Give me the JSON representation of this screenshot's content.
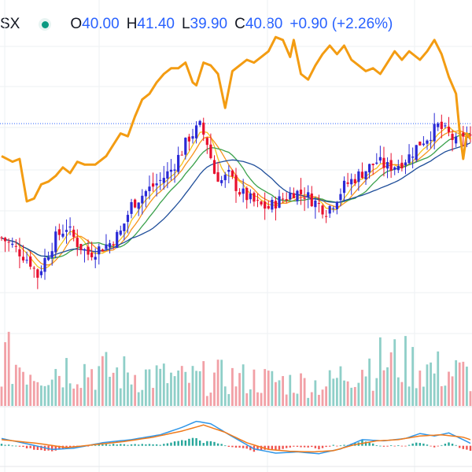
{
  "legend": {
    "symbol": "SX",
    "status_color": "#089981",
    "open_label": "O",
    "open": "40.00",
    "high_label": "H",
    "high": "41.40",
    "low_label": "L",
    "low": "39.90",
    "close_label": "C",
    "close": "40.80",
    "change": "+0.90 (+2.26%)"
  },
  "chart_data": {
    "type": "candlestick",
    "colors": {
      "up": "#2a2ad6",
      "down": "#e8102e",
      "volume_up": "#8fcfc8",
      "volume_down": "#f2a0a6",
      "overlay": "#f39c12",
      "ma_fast": "#f5c21b",
      "ma_mid": "#f7941d",
      "ma_slow": "#3aa14b",
      "ma_long": "#1f4e9a",
      "macd": "#2f96e8",
      "signal": "#f07a1a",
      "hist_up": "#26a69a",
      "hist_down": "#ef5350"
    },
    "price_line": 41.4,
    "keypoints": {
      "price": [
        [
          0,
          37.2
        ],
        [
          4,
          36.8
        ],
        [
          8,
          36.3
        ],
        [
          10,
          35.8
        ],
        [
          12,
          36.4
        ],
        [
          15,
          37.2
        ],
        [
          18,
          37.6
        ],
        [
          21,
          37.0
        ],
        [
          24,
          36.6
        ],
        [
          27,
          36.8
        ],
        [
          30,
          37.0
        ],
        [
          33,
          37.4
        ],
        [
          36,
          38.4
        ],
        [
          40,
          38.9
        ],
        [
          44,
          39.3
        ],
        [
          47,
          39.7
        ],
        [
          50,
          40.4
        ],
        [
          52,
          40.9
        ],
        [
          55,
          41.3
        ],
        [
          57,
          40.7
        ],
        [
          59,
          39.6
        ],
        [
          61,
          39.3
        ],
        [
          63,
          39.5
        ],
        [
          66,
          38.9
        ],
        [
          69,
          38.6
        ],
        [
          71,
          38.4
        ],
        [
          74,
          38.3
        ],
        [
          76,
          38.5
        ],
        [
          79,
          38.7
        ],
        [
          81,
          38.9
        ],
        [
          84,
          38.8
        ],
        [
          86,
          38.6
        ],
        [
          88,
          38.4
        ],
        [
          90,
          38.2
        ],
        [
          92,
          38.5
        ],
        [
          95,
          39.1
        ],
        [
          98,
          39.4
        ],
        [
          101,
          39.7
        ],
        [
          104,
          40.0
        ],
        [
          107,
          39.8
        ],
        [
          110,
          39.9
        ],
        [
          113,
          40.2
        ],
        [
          116,
          40.7
        ],
        [
          118,
          40.9
        ],
        [
          121,
          41.3
        ],
        [
          124,
          41.0
        ],
        [
          126,
          40.7
        ],
        [
          128,
          41.0
        ],
        [
          130,
          40.8
        ]
      ],
      "volume": [
        [
          0,
          0.4
        ],
        [
          10,
          0.3
        ],
        [
          20,
          0.33
        ],
        [
          30,
          0.28
        ],
        [
          40,
          0.26
        ],
        [
          50,
          0.22
        ],
        [
          60,
          0.24
        ],
        [
          70,
          0.22
        ],
        [
          80,
          0.2
        ],
        [
          90,
          0.18
        ],
        [
          100,
          0.35
        ],
        [
          110,
          0.38
        ],
        [
          120,
          0.3
        ],
        [
          130,
          0.26
        ]
      ],
      "overlay": [
        [
          0,
          0.56
        ],
        [
          3,
          0.54
        ],
        [
          5,
          0.55
        ],
        [
          7,
          0.4
        ],
        [
          9,
          0.41
        ],
        [
          11,
          0.46
        ],
        [
          13,
          0.47
        ],
        [
          15,
          0.49
        ],
        [
          17,
          0.52
        ],
        [
          19,
          0.5
        ],
        [
          21,
          0.54
        ],
        [
          23,
          0.53
        ],
        [
          26,
          0.53
        ],
        [
          29,
          0.56
        ],
        [
          31,
          0.6
        ],
        [
          33,
          0.64
        ],
        [
          35,
          0.63
        ],
        [
          37,
          0.7
        ],
        [
          39,
          0.76
        ],
        [
          41,
          0.78
        ],
        [
          43,
          0.82
        ],
        [
          45,
          0.85
        ],
        [
          47,
          0.87
        ],
        [
          49,
          0.87
        ],
        [
          51,
          0.89
        ],
        [
          53,
          0.82
        ],
        [
          54,
          0.81
        ],
        [
          56,
          0.89
        ],
        [
          58,
          0.88
        ],
        [
          60,
          0.85
        ],
        [
          62,
          0.73
        ],
        [
          64,
          0.86
        ],
        [
          66,
          0.88
        ],
        [
          68,
          0.9
        ],
        [
          70,
          0.89
        ],
        [
          72,
          0.91
        ],
        [
          74,
          0.93
        ],
        [
          76,
          0.98
        ],
        [
          78,
          0.97
        ],
        [
          80,
          0.91
        ],
        [
          81,
          0.97
        ],
        [
          83,
          0.85
        ],
        [
          85,
          0.83
        ],
        [
          87,
          0.88
        ],
        [
          89,
          0.92
        ],
        [
          91,
          0.95
        ],
        [
          93,
          0.92
        ],
        [
          95,
          0.95
        ],
        [
          97,
          0.9
        ],
        [
          99,
          0.88
        ],
        [
          101,
          0.86
        ],
        [
          103,
          0.87
        ],
        [
          105,
          0.85
        ],
        [
          107,
          0.89
        ],
        [
          109,
          0.93
        ],
        [
          111,
          0.9
        ],
        [
          113,
          0.93
        ],
        [
          116,
          0.9
        ],
        [
          118,
          0.93
        ],
        [
          120,
          0.97
        ],
        [
          122,
          0.92
        ],
        [
          124,
          0.84
        ],
        [
          126,
          0.78
        ],
        [
          127,
          0.65
        ],
        [
          128,
          0.55
        ],
        [
          129,
          0.64
        ],
        [
          130,
          0.62
        ]
      ],
      "macd": [
        [
          0,
          0.12
        ],
        [
          8,
          0.02
        ],
        [
          14,
          -0.06
        ],
        [
          20,
          -0.04
        ],
        [
          28,
          0.05
        ],
        [
          36,
          0.1
        ],
        [
          44,
          0.18
        ],
        [
          50,
          0.3
        ],
        [
          54,
          0.4
        ],
        [
          58,
          0.36
        ],
        [
          64,
          0.15
        ],
        [
          70,
          -0.05
        ],
        [
          76,
          -0.12
        ],
        [
          82,
          -0.1
        ],
        [
          88,
          -0.13
        ],
        [
          94,
          -0.05
        ],
        [
          100,
          0.1
        ],
        [
          106,
          0.08
        ],
        [
          112,
          0.12
        ],
        [
          116,
          0.2
        ],
        [
          120,
          0.16
        ],
        [
          124,
          0.21
        ],
        [
          128,
          0.1
        ],
        [
          130,
          0.04
        ]
      ],
      "signal": [
        [
          0,
          0.1
        ],
        [
          10,
          0.04
        ],
        [
          18,
          -0.03
        ],
        [
          26,
          0.02
        ],
        [
          34,
          0.07
        ],
        [
          42,
          0.14
        ],
        [
          50,
          0.24
        ],
        [
          56,
          0.34
        ],
        [
          62,
          0.22
        ],
        [
          68,
          0.05
        ],
        [
          74,
          -0.06
        ],
        [
          80,
          -0.09
        ],
        [
          86,
          -0.1
        ],
        [
          92,
          -0.08
        ],
        [
          98,
          0.02
        ],
        [
          104,
          0.08
        ],
        [
          110,
          0.1
        ],
        [
          116,
          0.16
        ],
        [
          122,
          0.18
        ],
        [
          128,
          0.14
        ],
        [
          130,
          0.1
        ]
      ]
    },
    "price_axis": {
      "min": 33.5,
      "max": 44.5
    },
    "volume_axis": {
      "min": 0,
      "max": 0.8
    },
    "overlay_axis": {
      "min": 0,
      "max": 1
    },
    "macd_axis": {
      "min": -0.3,
      "max": 0.6
    },
    "grid": true,
    "legend_position": "top-left"
  }
}
